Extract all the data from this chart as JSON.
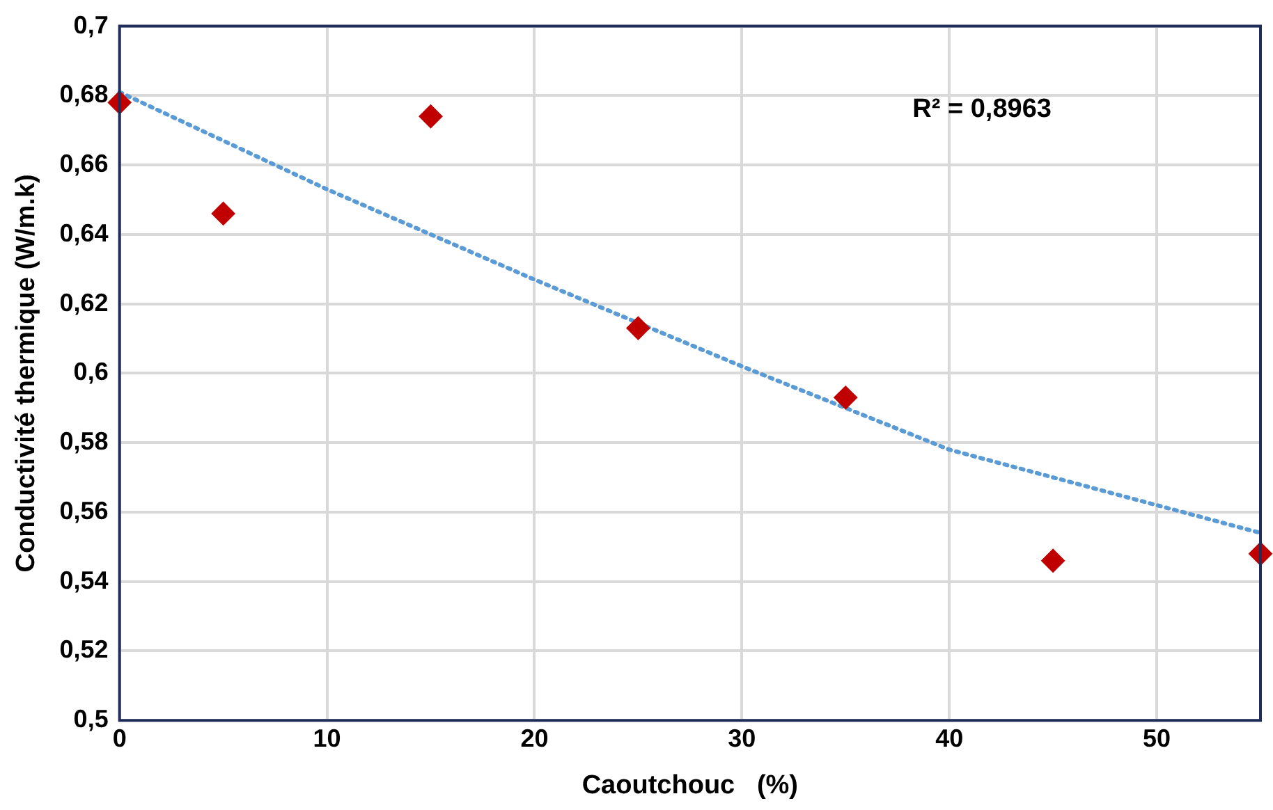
{
  "chart_data": {
    "type": "scatter",
    "xlabel": "Caoutchouc   (%)",
    "ylabel": "Conductivité thermique (W/m.k)",
    "x": [
      0,
      5,
      15,
      25,
      35,
      45,
      55
    ],
    "series": [
      {
        "type": "scatter",
        "color": "#c00000",
        "marker": "diamond",
        "values": [
          0.678,
          0.646,
          0.674,
          0.613,
          0.593,
          0.546,
          0.548
        ]
      },
      {
        "type": "line",
        "color": "#5b9bd5",
        "line_style": "dotted",
        "marker": "none",
        "x": [
          0,
          10,
          20,
          30,
          40,
          50,
          55
        ],
        "values": [
          0.681,
          0.653,
          0.627,
          0.602,
          0.578,
          0.562,
          0.554
        ]
      }
    ],
    "xlim": [
      0,
      55
    ],
    "xticks": [
      0,
      10,
      20,
      30,
      40,
      50
    ],
    "ylim": [
      0.5,
      0.7
    ],
    "yticks": [
      {
        "value": 0.5,
        "label": "0,5"
      },
      {
        "value": 0.52,
        "label": "0,52"
      },
      {
        "value": 0.54,
        "label": "0,54"
      },
      {
        "value": 0.56,
        "label": "0,56"
      },
      {
        "value": 0.58,
        "label": "0,58"
      },
      {
        "value": 0.6,
        "label": "0,6"
      },
      {
        "value": 0.62,
        "label": "0,62"
      },
      {
        "value": 0.64,
        "label": "0,64"
      },
      {
        "value": 0.66,
        "label": "0,66"
      },
      {
        "value": 0.68,
        "label": "0,68"
      },
      {
        "value": 0.7,
        "label": "0,7"
      }
    ],
    "annotations": [
      "R² = 0,8963"
    ],
    "grid": true,
    "legend": false
  }
}
